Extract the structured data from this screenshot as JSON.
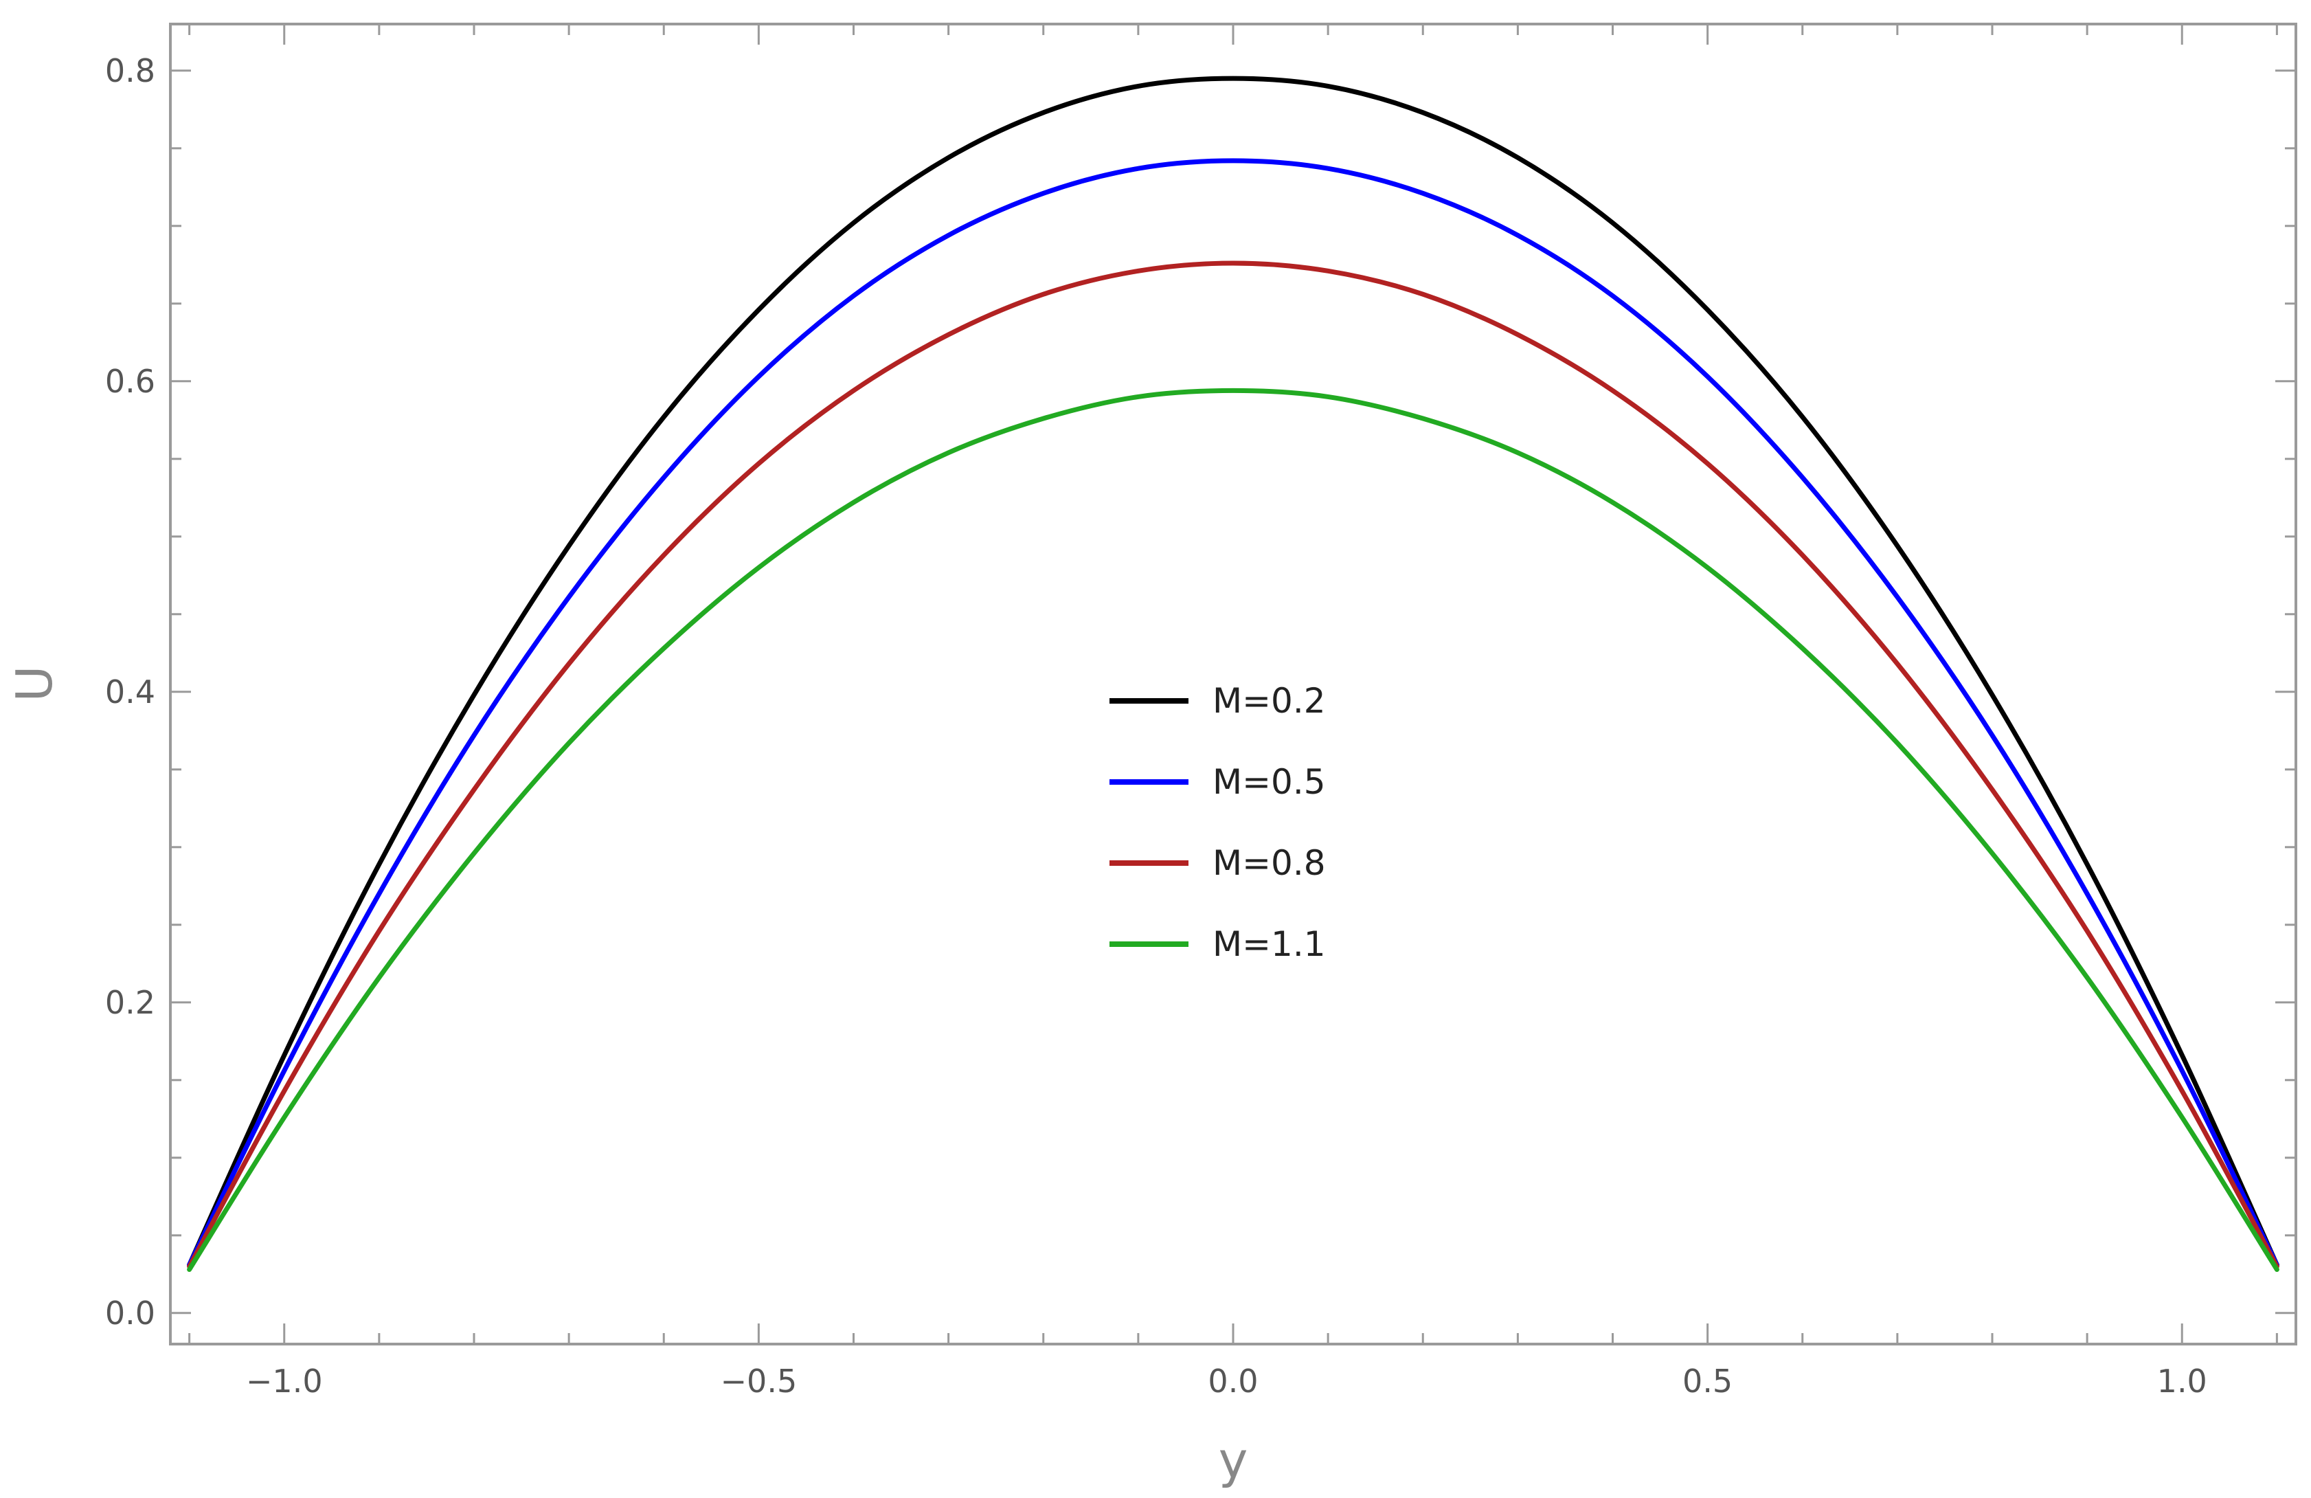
{
  "chart_data": {
    "type": "line",
    "title": "",
    "xlabel": "y",
    "ylabel": "U",
    "xlim": [
      -1.12,
      1.12
    ],
    "ylim": [
      -0.02,
      0.83
    ],
    "x_ticks": [
      -1.0,
      -0.5,
      0.0,
      0.5,
      1.0
    ],
    "x_tick_labels": [
      "-1.0",
      "-0.5",
      "0.0",
      "0.5",
      "1.0"
    ],
    "y_ticks": [
      0.0,
      0.2,
      0.4,
      0.6,
      0.8
    ],
    "y_tick_labels": [
      "0.0",
      "0.2",
      "0.4",
      "0.6",
      "0.8"
    ],
    "grid": false,
    "frame": true,
    "legend_position": "center",
    "x": [
      -1.1,
      -1.0,
      -0.9,
      -0.8,
      -0.7,
      -0.6,
      -0.5,
      -0.4,
      -0.3,
      -0.2,
      -0.1,
      0.0,
      0.1,
      0.2,
      0.3,
      0.4,
      0.5,
      0.6,
      0.7,
      0.8,
      0.9,
      1.0,
      1.1
    ],
    "series": [
      {
        "name": "M=0.2",
        "color": "#000000",
        "values": [
          0.031,
          0.166,
          0.289,
          0.398,
          0.494,
          0.577,
          0.646,
          0.702,
          0.744,
          0.773,
          0.79,
          0.795,
          0.79,
          0.773,
          0.744,
          0.702,
          0.646,
          0.577,
          0.494,
          0.398,
          0.289,
          0.166,
          0.031
        ]
      },
      {
        "name": "M=0.5",
        "color": "#0000ff",
        "values": [
          0.031,
          0.156,
          0.27,
          0.372,
          0.461,
          0.538,
          0.603,
          0.655,
          0.694,
          0.721,
          0.737,
          0.742,
          0.737,
          0.721,
          0.694,
          0.655,
          0.603,
          0.538,
          0.461,
          0.372,
          0.27,
          0.156,
          0.031
        ]
      },
      {
        "name": "M=0.8",
        "color": "#b22222",
        "values": [
          0.03,
          0.143,
          0.246,
          0.337,
          0.418,
          0.488,
          0.547,
          0.594,
          0.63,
          0.656,
          0.671,
          0.676,
          0.671,
          0.656,
          0.63,
          0.594,
          0.547,
          0.488,
          0.418,
          0.337,
          0.246,
          0.143,
          0.03
        ]
      },
      {
        "name": "M=1.1",
        "color": "#22aa22",
        "values": [
          0.028,
          0.126,
          0.216,
          0.296,
          0.367,
          0.428,
          0.48,
          0.522,
          0.554,
          0.576,
          0.59,
          0.594,
          0.59,
          0.576,
          0.554,
          0.522,
          0.48,
          0.428,
          0.367,
          0.296,
          0.216,
          0.126,
          0.028
        ]
      }
    ]
  }
}
